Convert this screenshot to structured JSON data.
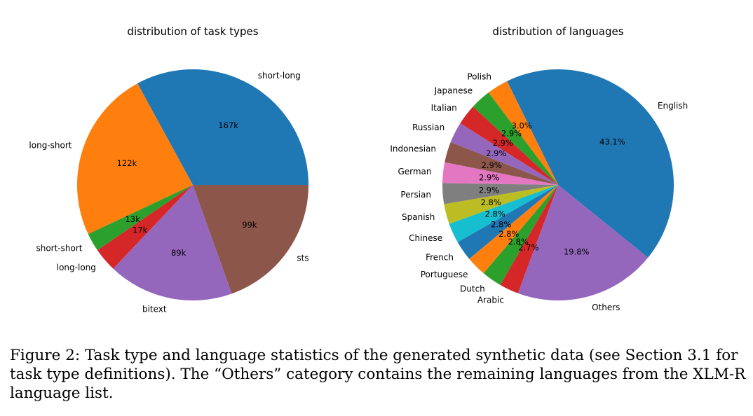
{
  "chart_data": [
    {
      "type": "pie",
      "title": "distribution of task types",
      "start_angle_deg": 0,
      "direction": "counterclockwise",
      "slices": [
        {
          "label": "short-long",
          "value": 167,
          "value_label": "167k",
          "color": "#1f77b4"
        },
        {
          "label": "long-short",
          "value": 122,
          "value_label": "122k",
          "color": "#ff7f0e"
        },
        {
          "label": "short-short",
          "value": 13,
          "value_label": "13k",
          "color": "#2ca02c"
        },
        {
          "label": "long-long",
          "value": 17,
          "value_label": "17k",
          "color": "#d62728"
        },
        {
          "label": "bitext",
          "value": 89,
          "value_label": "89k",
          "color": "#9467bd"
        },
        {
          "label": "sts",
          "value": 99,
          "value_label": "99k",
          "color": "#8c564b"
        }
      ]
    },
    {
      "type": "pie",
      "title": "distribution of languages",
      "start_angle_deg": -39,
      "direction": "counterclockwise",
      "slices": [
        {
          "label": "English",
          "value": 43.1,
          "value_label": "43.1%",
          "color": "#1f77b4"
        },
        {
          "label": "Polish",
          "value": 3.0,
          "value_label": "3.0%",
          "color": "#ff7f0e"
        },
        {
          "label": "Japanese",
          "value": 2.9,
          "value_label": "2.9%",
          "color": "#2ca02c"
        },
        {
          "label": "Italian",
          "value": 2.9,
          "value_label": "2.9%",
          "color": "#d62728"
        },
        {
          "label": "Russian",
          "value": 2.9,
          "value_label": "2.9%",
          "color": "#9467bd"
        },
        {
          "label": "Indonesian",
          "value": 2.9,
          "value_label": "2.9%",
          "color": "#8c564b"
        },
        {
          "label": "German",
          "value": 2.9,
          "value_label": "2.9%",
          "color": "#e377c2"
        },
        {
          "label": "Persian",
          "value": 2.9,
          "value_label": "2.9%",
          "color": "#7f7f7f"
        },
        {
          "label": "Spanish",
          "value": 2.8,
          "value_label": "2.8%",
          "color": "#bcbd22"
        },
        {
          "label": "Chinese",
          "value": 2.8,
          "value_label": "2.8%",
          "color": "#17becf"
        },
        {
          "label": "French",
          "value": 2.8,
          "value_label": "2.8%",
          "color": "#1f77b4"
        },
        {
          "label": "Portuguese",
          "value": 2.8,
          "value_label": "2.8%",
          "color": "#ff7f0e"
        },
        {
          "label": "Dutch",
          "value": 2.8,
          "value_label": "2.8%",
          "color": "#2ca02c"
        },
        {
          "label": "Arabic",
          "value": 2.7,
          "value_label": "2.7%",
          "color": "#d62728"
        },
        {
          "label": "Others",
          "value": 19.8,
          "value_label": "19.8%",
          "color": "#9467bd"
        }
      ]
    }
  ],
  "caption": "Figure 2: Task type and language statistics of the generated synthetic data (see Section 3.1 for task type definitions). The “Others” category contains the remaining languages from the XLM-R language list."
}
